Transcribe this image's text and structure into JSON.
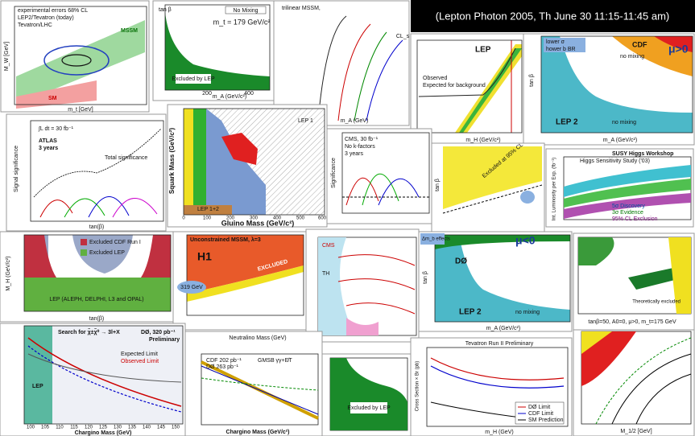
{
  "banner": "(Lepton Photon 2005, Th June 30 11:15-11:45 am)",
  "panels": [
    {
      "labels": [
        "experimental errors 68% CL",
        "LEP2/Tevatron (today)",
        "Tevatron/LHC",
        "MSSM",
        "SM",
        "m_t [GeV]",
        "M_W [GeV]"
      ]
    },
    {
      "labels": [
        "No Mixing",
        "m_t = 179 GeV/c²",
        "Excluded by LEP",
        "m_A (GeV/c²)",
        "tan β",
        "200",
        "400"
      ]
    },
    {
      "labels": [
        "trilinear MSSM,",
        "CL_s",
        "m_A (GeV)"
      ]
    },
    {
      "labels": [
        "LEP",
        "Observed",
        "Expected for background",
        "m_H (GeV/c²)"
      ]
    },
    {
      "labels": [
        "lower σ",
        "hower b BR",
        "CDF",
        "no mixing",
        "μ>0",
        "LEP 2",
        "no mixing",
        "m_A (GeV/c²)",
        "tan β"
      ]
    },
    {
      "labels": [
        "∫L dt = 30 fb⁻¹",
        "ATLAS",
        "3 years",
        "Total significance",
        "Signal significance",
        "tan(β)"
      ]
    },
    {
      "labels": [
        "Squark Mass (GeV/c²)",
        "Gluino Mass (GeV/c²)",
        "LEP 1",
        "LEP 1+2",
        "0",
        "100",
        "200",
        "300",
        "400",
        "500",
        "600"
      ]
    },
    {
      "labels": [
        "CMS, 30 fb⁻¹",
        "No k-factors",
        "3 years",
        "Significance"
      ]
    },
    {
      "labels": [
        "Excluded at 95% CL",
        "tan β"
      ]
    },
    {
      "labels": [
        "SUSY Higgs Workshop",
        "Higgs Sensitivity Study ('03)",
        "5σ Discovery",
        "3σ Evidence",
        "95% CL Exclusion",
        "Int. Luminosity per Exp. (fb⁻¹)"
      ]
    },
    {
      "labels": [
        "LEP (ALEPH, DELPHI, L3 and OPAL)",
        "Excluded CDF Run I",
        "Excluded LEP",
        "M_H (GeV/c²)",
        "tan(β)"
      ]
    },
    {
      "labels": [
        "Unconstrained MSSM, λ=3",
        "H1",
        "EXCLUDED",
        "319 GeV"
      ]
    },
    {
      "labels": [
        "CMS",
        "TH"
      ]
    },
    {
      "labels": [
        "μ<0",
        "DØ",
        "Δm_b effects",
        "LEP 2",
        "no mixing",
        "m_A (GeV/c²)",
        "tan β"
      ]
    },
    {
      "labels": [
        "tanβ=50, A0=0, μ>0, m_t=175 GeV",
        "Theoretically excluded"
      ]
    },
    {
      "labels": [
        "Search for χ̃±χ̃⁰ → 3l+X",
        "DØ, 320 pb⁻¹",
        "Preliminary",
        "Expected Limit",
        "Observed Limit",
        "LEP",
        "Chargino Mass (GeV)",
        "100",
        "105",
        "110",
        "115",
        "120",
        "125",
        "130",
        "135",
        "140",
        "145",
        "150"
      ]
    },
    {
      "labels": [
        "CDF 202 pb⁻¹",
        "DØ 263 pb⁻¹",
        "GMSB γγ+E̸T",
        "Neutralino Mass (GeV)",
        "Chargino Mass (GeV/c²)"
      ]
    },
    {
      "labels": [
        "Excluded by LEP"
      ]
    },
    {
      "labels": [
        "Tevatron Run II Preliminary",
        "DØ Limit",
        "CDF Limit",
        "SM Prediction",
        "Cross Section × Br (pb)",
        "m_H (GeV)"
      ]
    },
    {
      "labels": [
        "M_1/2 [GeV]"
      ]
    }
  ]
}
